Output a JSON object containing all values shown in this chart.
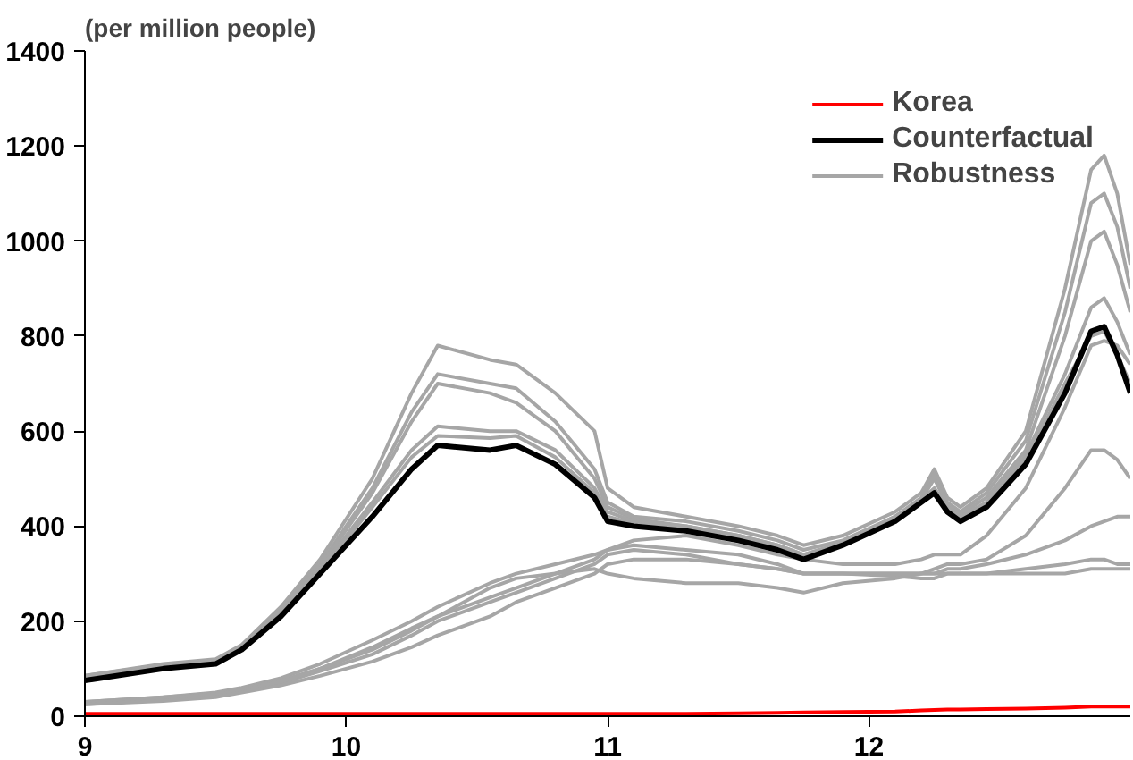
{
  "chart_data": {
    "type": "line",
    "ylabel": "(per million people)",
    "x": [
      9,
      9.3,
      9.5,
      9.6,
      9.75,
      9.9,
      10.1,
      10.25,
      10.35,
      10.55,
      10.65,
      10.8,
      10.95,
      11.0,
      11.1,
      11.3,
      11.5,
      11.65,
      11.75,
      11.9,
      12.1,
      12.2,
      12.25,
      12.3,
      12.35,
      12.45,
      12.6,
      12.75,
      12.85,
      12.9,
      12.95,
      13.0
    ],
    "xlim": [
      9,
      13
    ],
    "xticks": [
      9,
      10,
      11,
      12
    ],
    "ylim": [
      0,
      1400
    ],
    "yticks": [
      0,
      200,
      400,
      600,
      800,
      1000,
      1200,
      1400
    ],
    "grid": false,
    "legend": "top right",
    "series": [
      {
        "name": "Robustness",
        "color": "#a6a6a6",
        "values": [
          85,
          110,
          120,
          150,
          230,
          330,
          500,
          680,
          780,
          750,
          740,
          680,
          600,
          480,
          440,
          420,
          400,
          380,
          360,
          380,
          430,
          470,
          520,
          460,
          440,
          480,
          600,
          900,
          1150,
          1180,
          1100,
          950
        ]
      },
      {
        "color": "#a6a6a6",
        "values": [
          85,
          108,
          118,
          148,
          225,
          320,
          480,
          640,
          720,
          700,
          690,
          620,
          520,
          450,
          420,
          410,
          390,
          370,
          350,
          370,
          420,
          460,
          510,
          450,
          430,
          470,
          580,
          850,
          1080,
          1100,
          1030,
          900
        ]
      },
      {
        "color": "#a6a6a6",
        "values": [
          80,
          105,
          115,
          145,
          220,
          315,
          470,
          620,
          700,
          680,
          660,
          600,
          500,
          440,
          415,
          400,
          380,
          360,
          340,
          365,
          415,
          455,
          500,
          445,
          425,
          460,
          560,
          800,
          1000,
          1020,
          950,
          850
        ]
      },
      {
        "color": "#a6a6a6",
        "values": [
          80,
          105,
          115,
          145,
          215,
          310,
          450,
          560,
          610,
          600,
          600,
          560,
          480,
          430,
          410,
          400,
          380,
          360,
          340,
          365,
          420,
          455,
          480,
          440,
          420,
          450,
          550,
          720,
          860,
          880,
          830,
          760
        ]
      },
      {
        "color": "#a6a6a6",
        "values": [
          78,
          102,
          112,
          142,
          212,
          305,
          440,
          545,
          590,
          585,
          590,
          545,
          470,
          420,
          405,
          395,
          375,
          355,
          335,
          360,
          415,
          450,
          470,
          435,
          415,
          445,
          540,
          700,
          800,
          810,
          760,
          700
        ]
      },
      {
        "color": "#a6a6a6",
        "values": [
          30,
          40,
          50,
          60,
          80,
          110,
          160,
          200,
          230,
          280,
          300,
          320,
          340,
          350,
          360,
          350,
          340,
          320,
          300,
          300,
          300,
          300,
          300,
          310,
          310,
          320,
          340,
          370,
          400,
          410,
          420,
          420
        ]
      },
      {
        "color": "#a6a6a6",
        "values": [
          25,
          35,
          45,
          55,
          70,
          95,
          130,
          170,
          200,
          240,
          260,
          290,
          320,
          340,
          350,
          340,
          320,
          310,
          300,
          300,
          295,
          290,
          290,
          300,
          300,
          300,
          300,
          300,
          310,
          310,
          310,
          310
        ]
      },
      {
        "color": "#a6a6a6",
        "values": [
          30,
          40,
          48,
          58,
          75,
          100,
          145,
          185,
          210,
          250,
          270,
          300,
          330,
          350,
          370,
          380,
          360,
          340,
          330,
          320,
          320,
          330,
          340,
          340,
          340,
          380,
          480,
          650,
          780,
          790,
          780,
          740
        ]
      },
      {
        "color": "#a6a6a6",
        "values": [
          28,
          38,
          45,
          55,
          72,
          100,
          140,
          180,
          210,
          270,
          290,
          300,
          310,
          300,
          290,
          280,
          280,
          270,
          260,
          280,
          290,
          300,
          310,
          320,
          320,
          330,
          380,
          480,
          560,
          560,
          540,
          500
        ]
      },
      {
        "color": "#a6a6a6",
        "values": [
          25,
          32,
          40,
          50,
          65,
          85,
          115,
          145,
          170,
          210,
          240,
          270,
          300,
          320,
          330,
          330,
          320,
          310,
          300,
          300,
          300,
          300,
          300,
          300,
          300,
          300,
          310,
          320,
          330,
          330,
          320,
          320
        ]
      },
      {
        "name": "Counterfactual",
        "color": "#000000",
        "values": [
          75,
          100,
          110,
          140,
          210,
          300,
          420,
          520,
          570,
          560,
          570,
          530,
          460,
          410,
          400,
          390,
          370,
          350,
          330,
          360,
          410,
          450,
          470,
          430,
          410,
          440,
          530,
          680,
          810,
          820,
          760,
          680
        ]
      },
      {
        "name": "Korea",
        "color": "#ff0000",
        "values": [
          5,
          5,
          5,
          5,
          5,
          5,
          5,
          5,
          5,
          5,
          5,
          5,
          5,
          5,
          5,
          5,
          6,
          7,
          8,
          9,
          10,
          12,
          13,
          14,
          14,
          15,
          16,
          18,
          20,
          20,
          20,
          20
        ]
      }
    ]
  }
}
